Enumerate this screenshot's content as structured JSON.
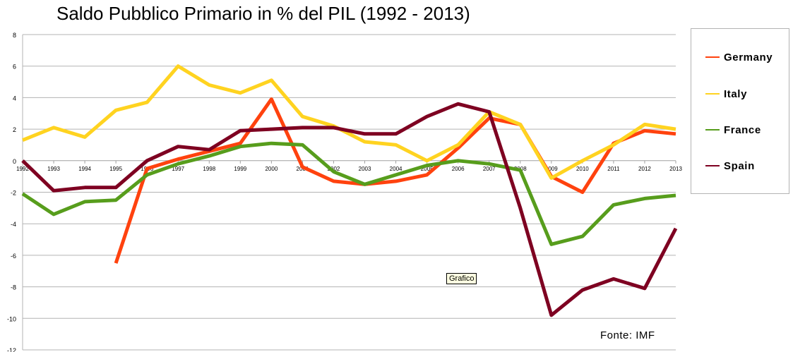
{
  "chart_data": {
    "type": "line",
    "title": "Saldo Pubblico Primario in % del PIL (1992 - 2013)",
    "xlabel": "",
    "ylabel": "",
    "ylim": [
      -12,
      8
    ],
    "y_ticks": [
      8,
      6,
      4,
      2,
      0,
      -2,
      -4,
      -6,
      -8,
      -10,
      -12
    ],
    "x": [
      "1992",
      "1993",
      "1994",
      "1995",
      "1996",
      "1997",
      "1998",
      "1999",
      "2000",
      "2001",
      "2002",
      "2003",
      "2004",
      "2005",
      "2006",
      "2007",
      "2008",
      "2009",
      "2010",
      "2011",
      "2012",
      "2013"
    ],
    "grid": true,
    "legend_position": "right",
    "series": [
      {
        "name": "Germany",
        "color": "#ff420e",
        "values": [
          null,
          null,
          null,
          -6.5,
          -0.5,
          0.1,
          0.6,
          1.1,
          3.9,
          -0.4,
          -1.3,
          -1.5,
          -1.3,
          -0.9,
          0.8,
          2.7,
          2.3,
          -1.0,
          -2.0,
          1.1,
          1.9,
          1.7
        ]
      },
      {
        "name": "Italy",
        "color": "#ffd320",
        "values": [
          1.3,
          2.1,
          1.5,
          3.2,
          3.7,
          6.0,
          4.8,
          4.3,
          5.1,
          2.8,
          2.2,
          1.2,
          1.0,
          0.0,
          1.0,
          3.1,
          2.3,
          -1.1,
          0.0,
          1.0,
          2.3,
          2.0
        ]
      },
      {
        "name": "France",
        "color": "#579d1c",
        "values": [
          -2.1,
          -3.4,
          -2.6,
          -2.5,
          -0.9,
          -0.2,
          0.3,
          0.9,
          1.1,
          1.0,
          -0.7,
          -1.5,
          -0.9,
          -0.3,
          0.0,
          -0.2,
          -0.6,
          -5.3,
          -4.8,
          -2.8,
          -2.4,
          -2.2
        ]
      },
      {
        "name": "Spain",
        "color": "#7e0021",
        "values": [
          0.0,
          -1.9,
          -1.7,
          -1.7,
          0.0,
          0.9,
          0.7,
          1.9,
          2.0,
          2.1,
          2.1,
          1.7,
          1.7,
          2.8,
          3.6,
          3.1,
          -3.0,
          -9.8,
          -8.2,
          -7.5,
          -8.1,
          -4.3
        ]
      }
    ],
    "annotations": {
      "source": "Fonte: IMF",
      "tooltip": "Grafico"
    }
  }
}
